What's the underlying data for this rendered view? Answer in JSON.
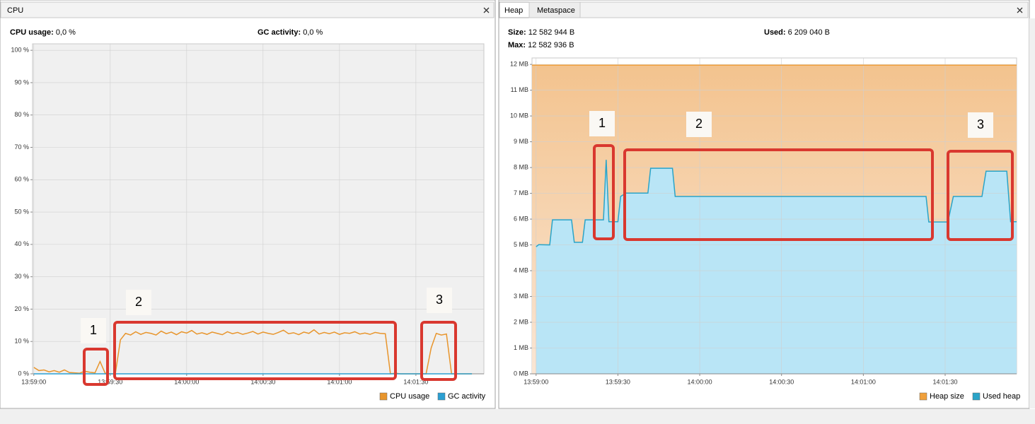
{
  "chart_data": [
    {
      "type": "line",
      "tabs": [
        "CPU"
      ],
      "stats": [
        {
          "label": "CPU usage:",
          "value": "0,0 %"
        },
        {
          "label": "GC activity:",
          "value": "0,0 %"
        }
      ],
      "xlim": [
        -0.5,
        176.7
      ],
      "xticks": [
        {
          "value": 0,
          "label": "13:59:00"
        },
        {
          "value": 30,
          "label": "13:59:30"
        },
        {
          "value": 60,
          "label": "14:00:00"
        },
        {
          "value": 90,
          "label": "14:00:30"
        },
        {
          "value": 120,
          "label": "14:01:00"
        },
        {
          "value": 150,
          "label": "14:01:30"
        }
      ],
      "ylim": [
        0,
        102
      ],
      "yticks": [
        {
          "value": 0,
          "label": "0 %"
        },
        {
          "value": 10,
          "label": "10 %"
        },
        {
          "value": 20,
          "label": "20 %"
        },
        {
          "value": 30,
          "label": "30 %"
        },
        {
          "value": 40,
          "label": "40 %"
        },
        {
          "value": 50,
          "label": "50 %"
        },
        {
          "value": 60,
          "label": "60 %"
        },
        {
          "value": 70,
          "label": "70 %"
        },
        {
          "value": 80,
          "label": "80 %"
        },
        {
          "value": 90,
          "label": "90 %"
        },
        {
          "value": 100,
          "label": "100 %"
        }
      ],
      "grid": true,
      "series": [
        {
          "name": "CPU usage",
          "color": "#e8952c",
          "x": [
            0,
            2,
            4,
            6,
            8,
            10,
            12,
            14,
            16,
            18,
            20,
            22,
            24,
            26,
            28,
            30,
            32,
            34,
            36,
            38,
            40,
            42,
            44,
            46,
            48,
            50,
            52,
            54,
            56,
            58,
            60,
            62,
            64,
            66,
            68,
            70,
            72,
            74,
            76,
            78,
            80,
            82,
            84,
            86,
            88,
            90,
            92,
            94,
            96,
            98,
            100,
            102,
            104,
            106,
            108,
            110,
            112,
            114,
            116,
            118,
            120,
            122,
            124,
            126,
            128,
            130,
            132,
            134,
            136,
            138,
            140,
            142,
            144,
            146,
            148,
            150,
            152,
            154,
            156,
            158,
            160,
            162,
            164,
            166,
            168,
            170,
            172
          ],
          "values": [
            2,
            1,
            1.2,
            0.6,
            1,
            0.5,
            1.2,
            0.4,
            0.3,
            0.2,
            0.8,
            0.5,
            0.3,
            3.8,
            0.2,
            0,
            0,
            10.5,
            12.5,
            12,
            13,
            12.2,
            12.8,
            12.5,
            12,
            13.2,
            12.4,
            12.9,
            12.1,
            13,
            12.6,
            13.4,
            12.3,
            12.7,
            12.2,
            12.9,
            12.5,
            12.1,
            13,
            12.4,
            12.8,
            12.2,
            12.6,
            13.1,
            12.3,
            12.9,
            12.5,
            12.2,
            12.8,
            13.5,
            12.4,
            12.7,
            12.1,
            12.9,
            12.5,
            13.6,
            12.3,
            12.8,
            12.4,
            12.9,
            12.2,
            12.7,
            12.5,
            13,
            12.3,
            12.6,
            12.2,
            12.8,
            12.5,
            12.4,
            0,
            0.2,
            0,
            0,
            0,
            0,
            0,
            0,
            8,
            12.5,
            12,
            12.3,
            0,
            0,
            0,
            0,
            0
          ]
        },
        {
          "name": "GC activity",
          "color": "#2b9fd2",
          "x": [
            0,
            172
          ],
          "values": [
            0,
            0
          ]
        }
      ],
      "annotations": [
        "1",
        "2",
        "3"
      ]
    },
    {
      "type": "area",
      "tabs": [
        "Heap",
        "Metaspace"
      ],
      "stats": [
        {
          "label": "Size:",
          "value": "12 582 944 B"
        },
        {
          "label": "Used:",
          "value": "6 209 040 B"
        },
        {
          "label": "Max:",
          "value": "12 582 936 B"
        }
      ],
      "xlim": [
        -1.5,
        176.2
      ],
      "xticks": [
        {
          "value": 0,
          "label": "13:59:00"
        },
        {
          "value": 30,
          "label": "13:59:30"
        },
        {
          "value": 60,
          "label": "14:00:00"
        },
        {
          "value": 90,
          "label": "14:00:30"
        },
        {
          "value": 120,
          "label": "14:01:00"
        },
        {
          "value": 150,
          "label": "14:01:30"
        }
      ],
      "ylim": [
        0,
        12.25
      ],
      "yticks": [
        {
          "value": 0,
          "label": "0 MB"
        },
        {
          "value": 1,
          "label": "1 MB"
        },
        {
          "value": 2,
          "label": "2 MB"
        },
        {
          "value": 3,
          "label": "3 MB"
        },
        {
          "value": 4,
          "label": "4 MB"
        },
        {
          "value": 5,
          "label": "5 MB"
        },
        {
          "value": 6,
          "label": "6 MB"
        },
        {
          "value": 7,
          "label": "7 MB"
        },
        {
          "value": 8,
          "label": "8 MB"
        },
        {
          "value": 9,
          "label": "9 MB"
        },
        {
          "value": 10,
          "label": "10 MB"
        },
        {
          "value": 11,
          "label": "11 MB"
        },
        {
          "value": 12,
          "label": "12 MB"
        }
      ],
      "grid": true,
      "series": [
        {
          "name": "Heap size",
          "color": "#f0a03c",
          "x": [
            -1.5,
            176.2
          ],
          "values": [
            11.97,
            11.97
          ]
        },
        {
          "name": "Used heap",
          "color": "#2aa4c8",
          "x": [
            0,
            1,
            5,
            6,
            13,
            14,
            17,
            18,
            24.7,
            25.7,
            26.7,
            30,
            31,
            33,
            41,
            42,
            50,
            51,
            143,
            144,
            151,
            153,
            163.5,
            165,
            172.6,
            174,
            176.2
          ],
          "values": [
            4.93,
            5.01,
            5.0,
            5.97,
            5.97,
            5.1,
            5.1,
            5.97,
            5.97,
            8.3,
            5.9,
            5.9,
            6.88,
            7.01,
            7.01,
            7.97,
            7.97,
            6.88,
            6.88,
            5.89,
            5.89,
            6.88,
            6.88,
            7.86,
            7.86,
            5.9,
            5.9
          ]
        }
      ],
      "annotations": [
        "1",
        "2",
        "3"
      ]
    }
  ]
}
